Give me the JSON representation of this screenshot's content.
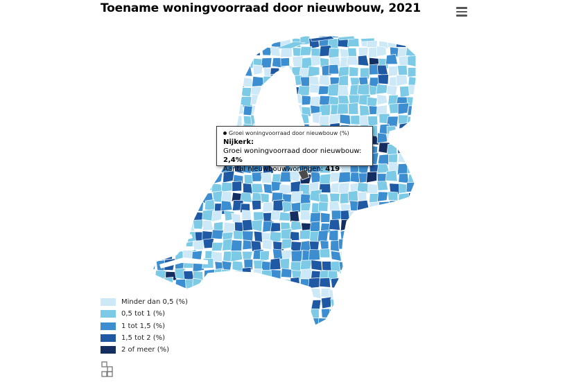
{
  "title": "Toename woningvoorraad door nieuwbouw, 2021",
  "colors": {
    "class1": "#cde9f7",
    "class2": "#7ccae6",
    "class3": "#3d8ed0",
    "class4": "#1f58a3",
    "class5": "#142e62",
    "highlight": "#4a4a4a"
  },
  "tooltip": {
    "series": "Groei woningvoorraad door nieuwbouw (%)",
    "municipality": "Nijkerk:",
    "growth_label": "Groei woningvoorraad door nieuwbouw:",
    "growth_value": "2,4%",
    "count_label": "Aantal nieuwbouwwoningen:",
    "count_value": "419"
  },
  "legend": [
    {
      "label": "Minder dan 0,5 (%)",
      "color": "#cde9f7"
    },
    {
      "label": "0,5 tot 1 (%)",
      "color": "#7ccae6"
    },
    {
      "label": "1 tot 1,5 (%)",
      "color": "#3d8ed0"
    },
    {
      "label": "1,5 tot 2 (%)",
      "color": "#1f58a3"
    },
    {
      "label": "2 of meer (%)",
      "color": "#142e62"
    }
  ],
  "icons": {
    "menu": "hamburger-menu-icon",
    "logo": "cbs-logo-icon"
  }
}
